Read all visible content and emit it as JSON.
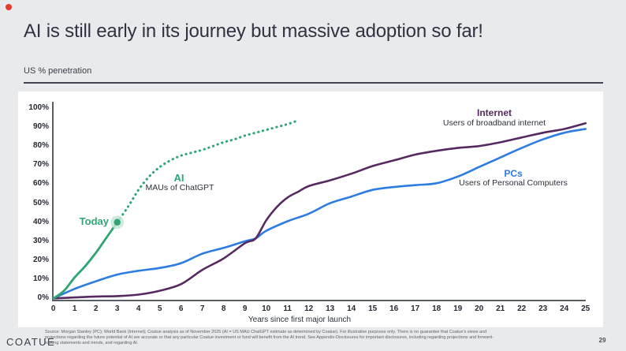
{
  "slide": {
    "title": "AI is still early in its journey but massive adoption so far!",
    "subtitle": "US % penetration",
    "logo_text": "COATUE",
    "page_number": "29",
    "footer_lines": [
      "Source: Morgan Stanley (PC); World Bank (Internet); Coatue analysis as of November 2025 (AI = US MAU ChatGPT estimate as determined by Coatue). For illustrative purposes only. There is no guarantee that Coatue's views and",
      "projections regarding the future potential of AI are accurate or that any particular Coatue investment or fund will benefit from the AI trend. See Appendix-Disclosures for important disclosures, including regarding projections and forward-",
      "looking statements and trends, and regarding AI."
    ]
  },
  "chart_data": {
    "type": "line",
    "title": "US % penetration",
    "xlabel": "Years since first major launch",
    "ylabel": "US % penetration",
    "xlim": [
      0,
      25
    ],
    "ylim": [
      0,
      100
    ],
    "grid": false,
    "legend_position": "inline-labels",
    "x_ticks": [
      "0",
      "1",
      "2",
      "3",
      "4",
      "5",
      "6",
      "7",
      "8",
      "9",
      "10",
      "11",
      "12",
      "13",
      "14",
      "15",
      "16",
      "17",
      "18",
      "19",
      "20",
      "21",
      "22",
      "23",
      "24",
      "25"
    ],
    "y_ticks": [
      "0%",
      "10%",
      "20%",
      "30%",
      "40%",
      "50%",
      "60%",
      "70%",
      "80%",
      "90%",
      "100%"
    ],
    "series": [
      {
        "name": "AI",
        "label": "AI",
        "sublabel": "MAUs of ChatGPT",
        "color": "#2ea573",
        "style": "solid-then-dotted",
        "points_solid": [
          [
            0,
            0
          ],
          [
            0.5,
            4
          ],
          [
            1,
            11
          ],
          [
            1.5,
            17
          ],
          [
            2,
            24
          ],
          [
            2.5,
            32
          ],
          [
            3,
            40
          ]
        ],
        "points_dotted": [
          [
            3,
            40
          ],
          [
            3.5,
            48
          ],
          [
            4,
            57
          ],
          [
            4.5,
            64
          ],
          [
            5,
            69
          ],
          [
            5.5,
            72.5
          ],
          [
            6,
            75
          ],
          [
            6.5,
            76.5
          ],
          [
            7,
            78
          ],
          [
            7.5,
            80
          ],
          [
            8,
            82
          ],
          [
            8.5,
            83.5
          ],
          [
            9,
            85.5
          ],
          [
            9.5,
            87
          ],
          [
            10,
            88.5
          ],
          [
            10.5,
            90
          ],
          [
            11,
            91.5
          ],
          [
            11.5,
            93.5
          ]
        ]
      },
      {
        "name": "Internet",
        "label": "Internet",
        "sublabel": "Users of broadband internet",
        "color": "#572961",
        "style": "solid",
        "points": [
          [
            0,
            0
          ],
          [
            1,
            0.5
          ],
          [
            2,
            1
          ],
          [
            3,
            1.2
          ],
          [
            4,
            2
          ],
          [
            5,
            4
          ],
          [
            6,
            7.5
          ],
          [
            7,
            15
          ],
          [
            8,
            21
          ],
          [
            9,
            29
          ],
          [
            9.5,
            31.5
          ],
          [
            10,
            41
          ],
          [
            10.5,
            48
          ],
          [
            11,
            53
          ],
          [
            11.5,
            56
          ],
          [
            12,
            59
          ],
          [
            13,
            62
          ],
          [
            14,
            65.5
          ],
          [
            15,
            69.5
          ],
          [
            16,
            72.5
          ],
          [
            17,
            75.5
          ],
          [
            18,
            77.5
          ],
          [
            19,
            79
          ],
          [
            20,
            80
          ],
          [
            21,
            82
          ],
          [
            22,
            84.5
          ],
          [
            23,
            87
          ],
          [
            24,
            89
          ],
          [
            25,
            92
          ]
        ]
      },
      {
        "name": "PCs",
        "label": "PCs",
        "sublabel": "Users of Personal Computers",
        "color": "#2d7ce1",
        "style": "solid",
        "points": [
          [
            0,
            0
          ],
          [
            1,
            5
          ],
          [
            2,
            9
          ],
          [
            3,
            12.5
          ],
          [
            4,
            14.5
          ],
          [
            5,
            16
          ],
          [
            6,
            18.5
          ],
          [
            7,
            23.5
          ],
          [
            8,
            26.5
          ],
          [
            9,
            30
          ],
          [
            9.5,
            31.5
          ],
          [
            10,
            35.5
          ],
          [
            11,
            40.5
          ],
          [
            12,
            44.5
          ],
          [
            13,
            50
          ],
          [
            14,
            53.5
          ],
          [
            15,
            57
          ],
          [
            16,
            58.5
          ],
          [
            17,
            59.5
          ],
          [
            18,
            60.5
          ],
          [
            19,
            64
          ],
          [
            20,
            69
          ],
          [
            21,
            74
          ],
          [
            22,
            79
          ],
          [
            23,
            83.5
          ],
          [
            24,
            87
          ],
          [
            25,
            89
          ]
        ]
      }
    ],
    "annotations": {
      "today_label": "Today",
      "today_point": [
        3,
        40
      ],
      "today_marker_color": "#2ea573",
      "today_halo_color": "#c6e8d7"
    }
  },
  "colors": {
    "background": "#e9eaeb",
    "card": "#ffffff",
    "axis": "#5a5f66",
    "title": "#2f3342",
    "ai_green": "#2ea573",
    "internet_purple": "#572961",
    "pcs_blue": "#2d7ce1",
    "record_dot": "#e8392c"
  }
}
